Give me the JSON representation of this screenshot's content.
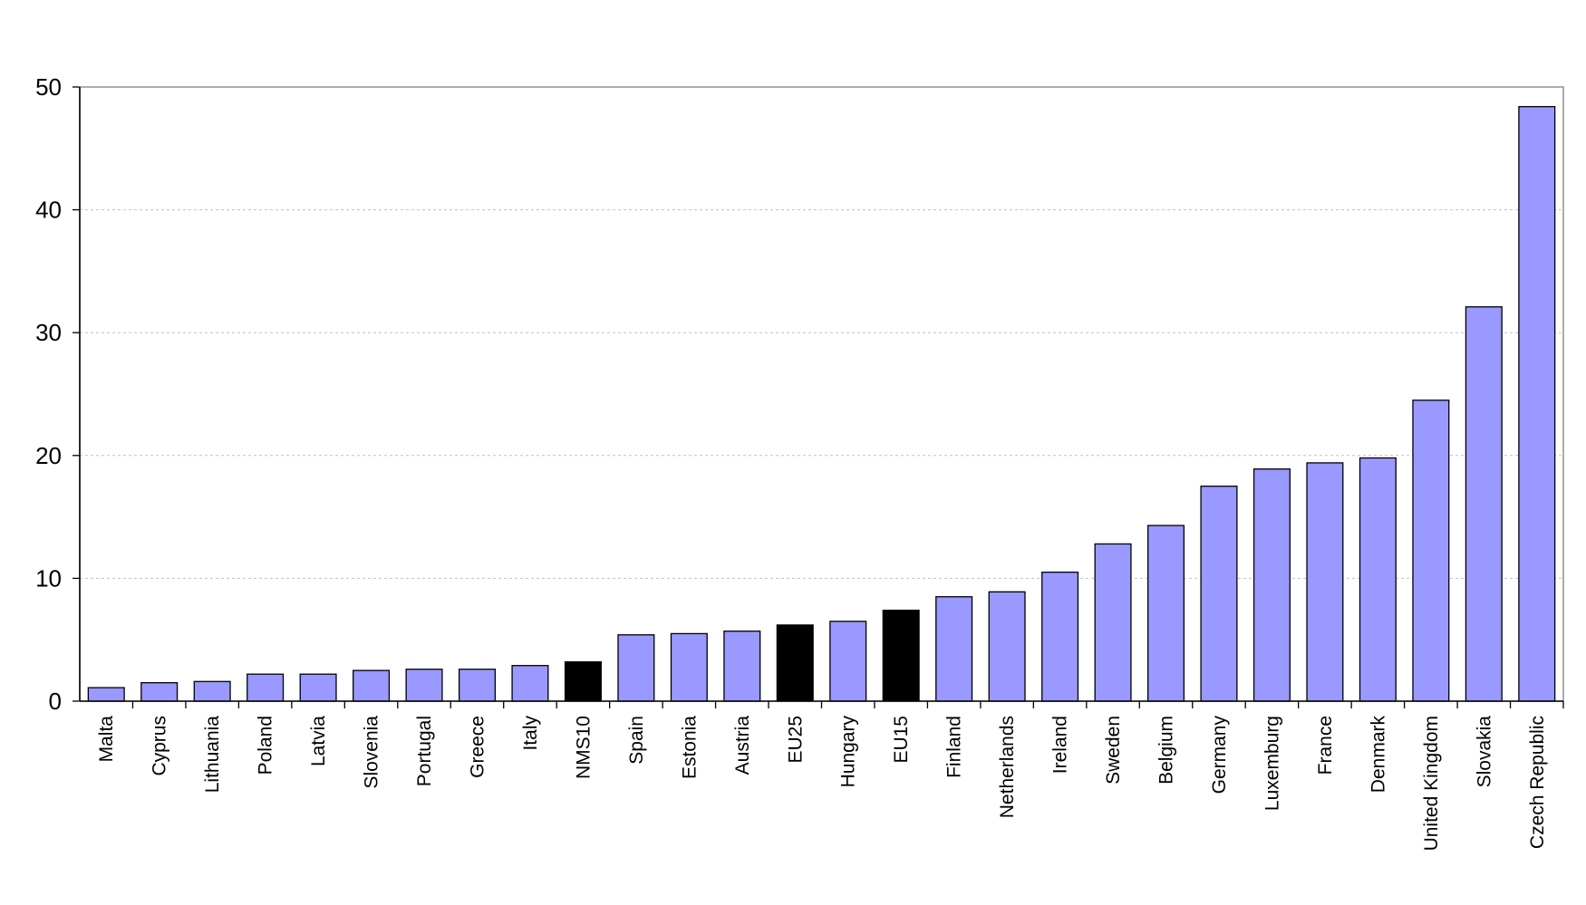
{
  "chart_data": {
    "type": "bar",
    "title": "",
    "xlabel": "",
    "ylabel": "",
    "ylim": [
      0,
      50
    ],
    "yticks": [
      0,
      10,
      20,
      30,
      40,
      50
    ],
    "grid": "horizontal dotted",
    "categories": [
      "Malta",
      "Cyprus",
      "Lithuania",
      "Poland",
      "Latvia",
      "Slovenia",
      "Portugal",
      "Greece",
      "Italy",
      "NMS10",
      "Spain",
      "Estonia",
      "Austria",
      "EU25",
      "Hungary",
      "EU15",
      "Finland",
      "Netherlands",
      "Ireland",
      "Sweden",
      "Belgium",
      "Germany",
      "Luxemburg",
      "France",
      "Denmark",
      "United Kingdom",
      "Slovakia",
      "Czech Republic"
    ],
    "values": [
      1.1,
      1.5,
      1.6,
      2.2,
      2.2,
      2.5,
      2.6,
      2.6,
      2.9,
      3.2,
      5.4,
      5.5,
      5.7,
      6.2,
      6.5,
      7.4,
      8.5,
      8.9,
      10.5,
      12.8,
      14.3,
      17.5,
      18.9,
      19.4,
      19.8,
      24.5,
      32.1,
      48.4
    ],
    "colors": {
      "country": "#9999ff",
      "aggregate": "#000000",
      "gridline": "#c0c0c0"
    },
    "aggregate_categories": [
      "NMS10",
      "EU25",
      "EU15"
    ]
  }
}
